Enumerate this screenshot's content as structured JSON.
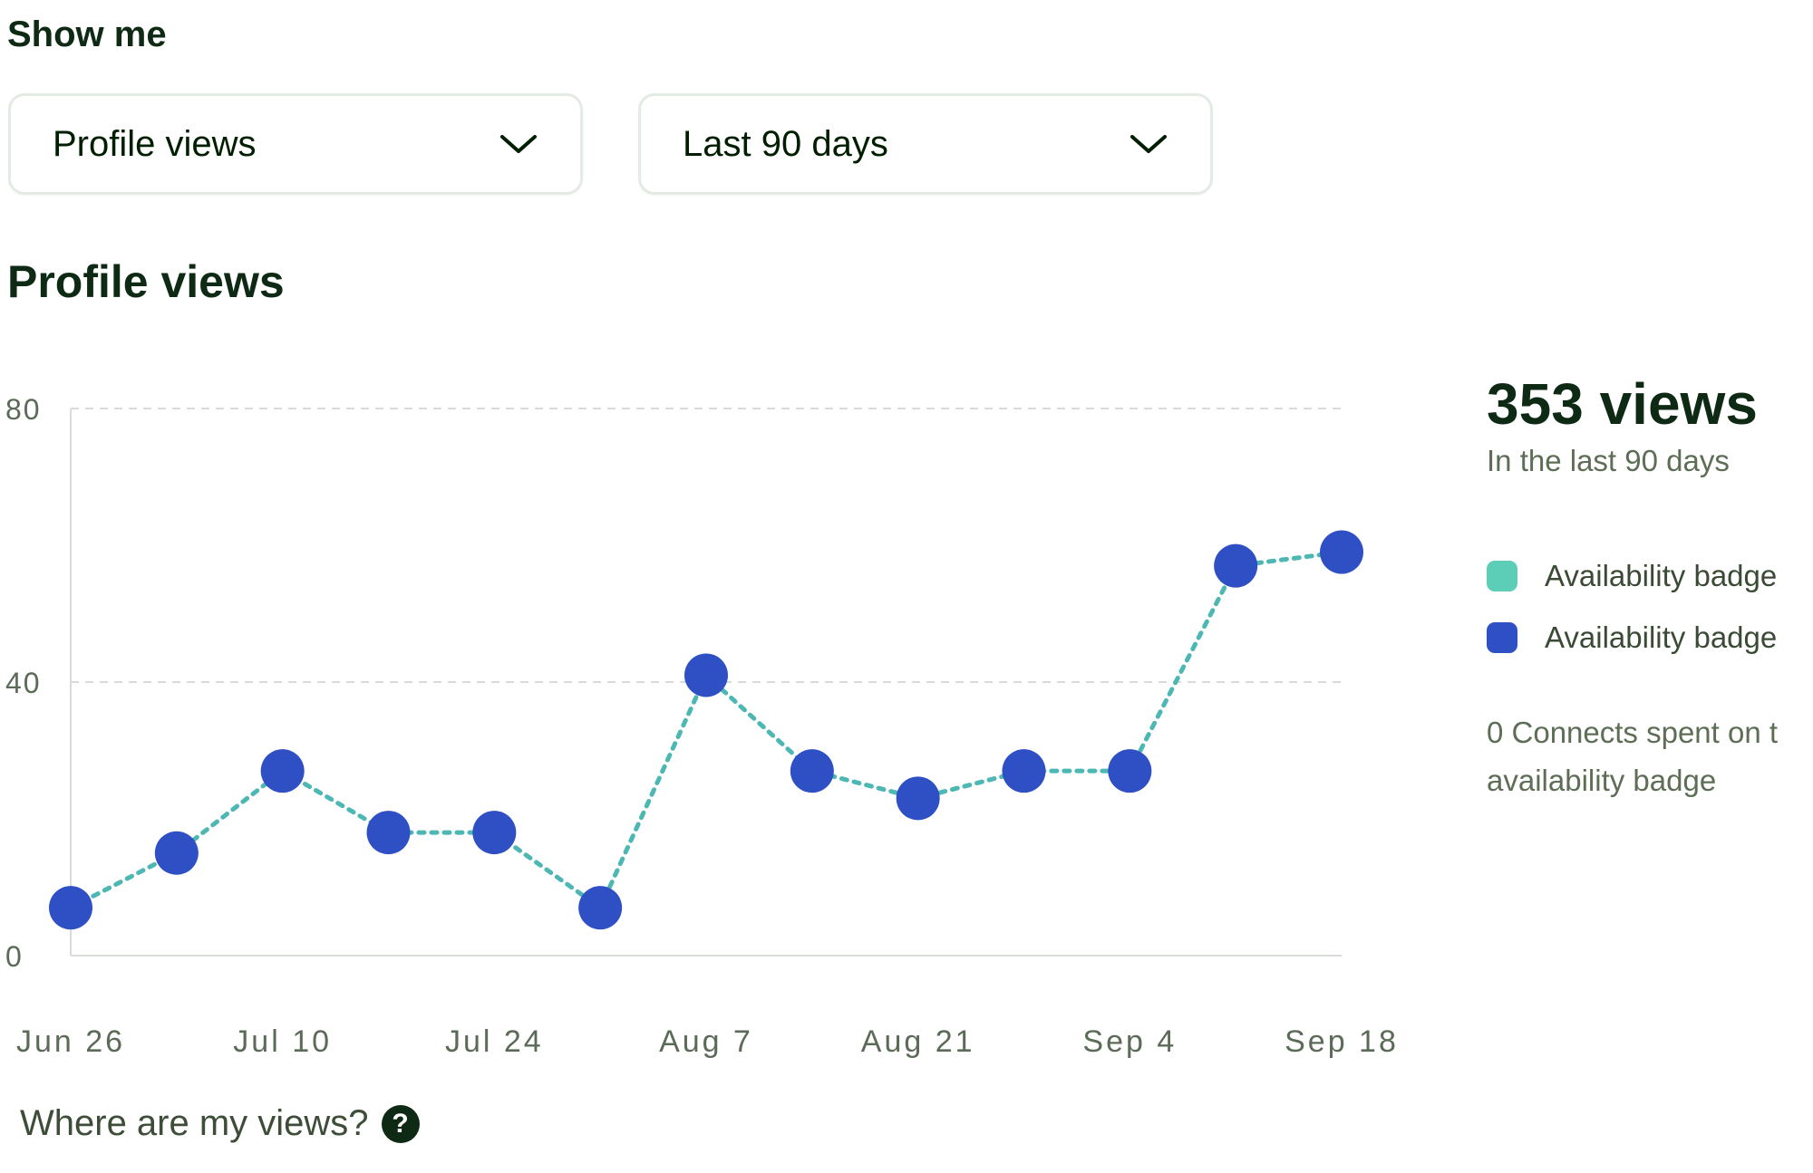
{
  "filters": {
    "label": "Show me",
    "metric_value": "Profile views",
    "range_value": "Last 90 days"
  },
  "section": {
    "title": "Profile views"
  },
  "summary": {
    "total": "353 views",
    "period": "In the last 90 days",
    "connects_line1": "0 Connects spent on t",
    "connects_line2": "availability badge"
  },
  "legend": [
    {
      "label": "Availability badge",
      "color": "#5ccdb6"
    },
    {
      "label": "Availability badge",
      "color": "#2f4fc4"
    }
  ],
  "help": {
    "text": "Where are my views?",
    "icon": "question-circle-icon"
  },
  "colors": {
    "line": "#4db7b4",
    "point": "#2f4fc4",
    "grid": "#d7dcd7",
    "axis_text": "#5b6b57"
  },
  "chart_data": {
    "type": "line",
    "title": "Profile views",
    "ylim": [
      0,
      80
    ],
    "y_ticks": [
      "0",
      "40",
      "80"
    ],
    "y_tick_values": [
      0,
      40,
      80
    ],
    "x_tick_labels": [
      "Jun 26",
      "Jul 10",
      "Jul 24",
      "Aug 7",
      "Aug 21",
      "Sep 4",
      "Sep 18"
    ],
    "x_tick_indices": [
      0,
      2,
      4,
      6,
      8,
      10,
      12
    ],
    "grid": "horizontal dashed",
    "series": [
      {
        "values": [
          7,
          15,
          27,
          18,
          18,
          7,
          41,
          27,
          23,
          27,
          27,
          57,
          59
        ]
      }
    ]
  }
}
